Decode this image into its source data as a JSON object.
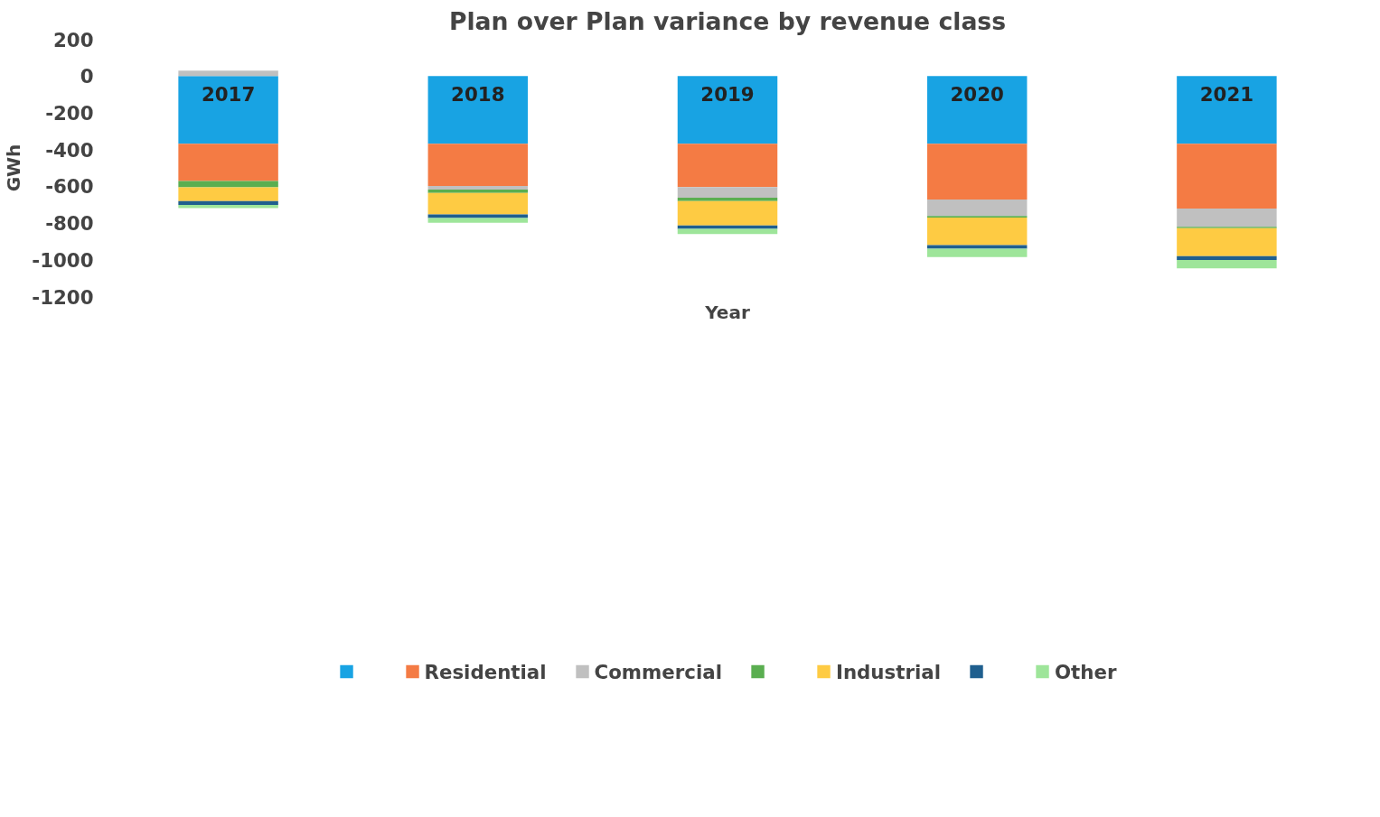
{
  "chart_data": {
    "type": "bar",
    "stacked": true,
    "title": "Plan over Plan variance by revenue class",
    "xlabel": "Year",
    "ylabel": "GWh",
    "categories": [
      "2017",
      "2018",
      "2019",
      "2020",
      "2021"
    ],
    "ylim": [
      -1200,
      200
    ],
    "yticks": [
      -1200,
      -1000,
      -800,
      -600,
      -400,
      -200,
      0,
      200
    ],
    "grid": false,
    "legend": "bottom",
    "series": [
      {
        "color": "#18a3e3",
        "values": [
          -368,
          -368,
          -368,
          -368,
          -368
        ]
      },
      {
        "name": "Residential",
        "color": "#f47b44",
        "values": [
          -203,
          -230,
          -236,
          -304,
          -353
        ]
      },
      {
        "name": "Commercial",
        "color": "#c0c0c0",
        "values": [
          29,
          -20,
          -58,
          -90,
          -99
        ]
      },
      {
        "color": "#5aae50",
        "values": [
          -35,
          -18,
          -18,
          -8,
          -8
        ]
      },
      {
        "name": "Industrial",
        "color": "#fecb43",
        "values": [
          -74,
          -117,
          -133,
          -150,
          -152
        ]
      },
      {
        "color": "#1f5f8e",
        "values": [
          -21,
          -20,
          -18,
          -20,
          -21
        ]
      },
      {
        "name": "Other",
        "color": "#9ee59a",
        "values": [
          -18,
          -25,
          -29,
          -45,
          -45
        ]
      }
    ]
  }
}
